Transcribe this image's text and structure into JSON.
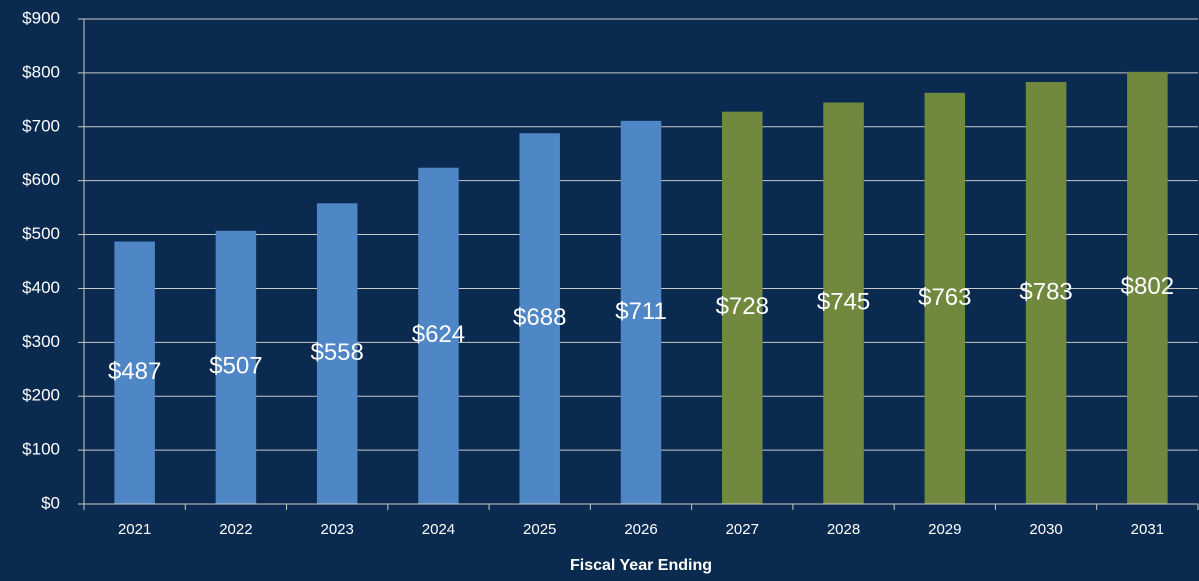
{
  "chart_data": {
    "type": "bar",
    "x_label": "Fiscal Year Ending",
    "categories": [
      "2021",
      "2022",
      "2023",
      "2024",
      "2025",
      "2026",
      "2027",
      "2028",
      "2029",
      "2030",
      "2031"
    ],
    "values": [
      487,
      507,
      558,
      624,
      688,
      711,
      728,
      745,
      763,
      783,
      802
    ],
    "value_labels": [
      "$487",
      "$507",
      "$558",
      "$624",
      "$688",
      "$711",
      "$728",
      "$745",
      "$763",
      "$783",
      "$802"
    ],
    "colors": [
      "#4f86c6",
      "#4f86c6",
      "#4f86c6",
      "#4f86c6",
      "#4f86c6",
      "#4f86c6",
      "#71893f",
      "#71893f",
      "#71893f",
      "#71893f",
      "#71893f"
    ],
    "ylim": [
      0,
      900
    ],
    "yticks": [
      {
        "value": 0,
        "label": "$0"
      },
      {
        "value": 100,
        "label": "$100"
      },
      {
        "value": 200,
        "label": "$200"
      },
      {
        "value": 300,
        "label": "$300"
      },
      {
        "value": 400,
        "label": "$400"
      },
      {
        "value": 500,
        "label": "$500"
      },
      {
        "value": 600,
        "label": "$600"
      },
      {
        "value": 700,
        "label": "$700"
      },
      {
        "value": 800,
        "label": "$800"
      },
      {
        "value": 900,
        "label": "$900"
      }
    ],
    "grid": true
  }
}
